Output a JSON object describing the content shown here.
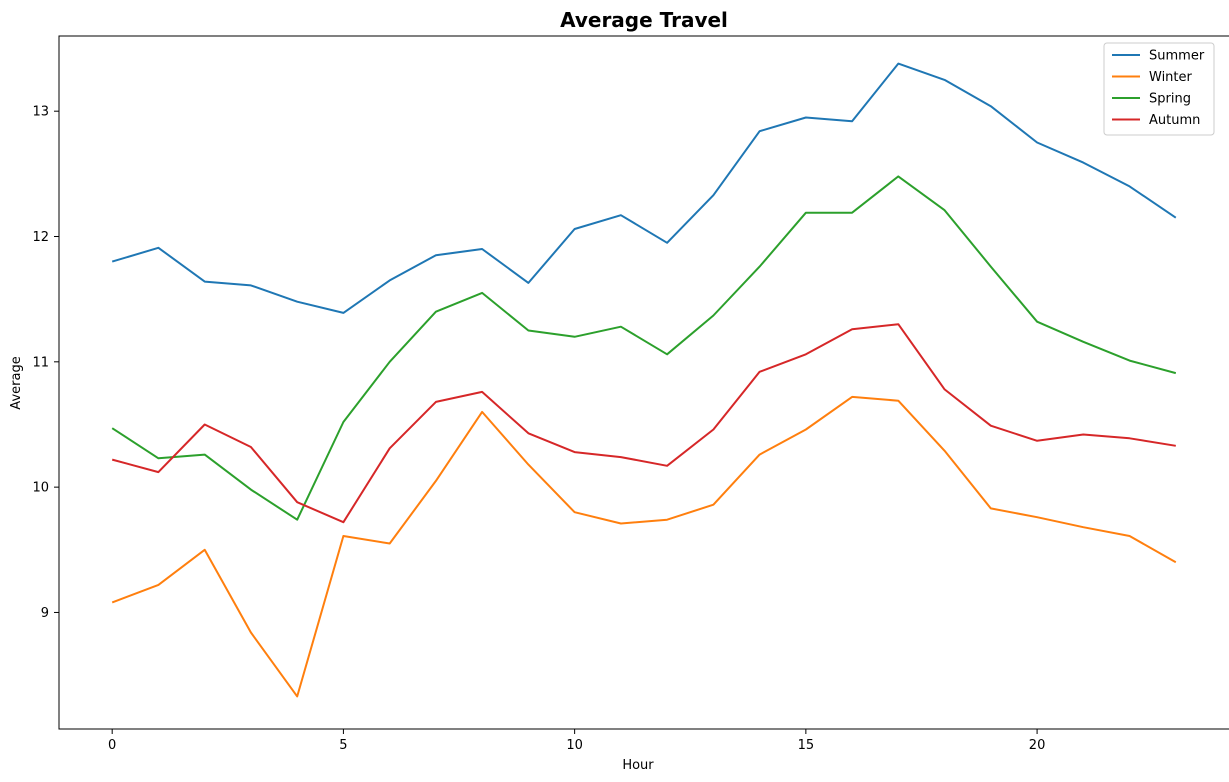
{
  "chart_data": {
    "type": "line",
    "title": "Average Travel",
    "xlabel": "Hour",
    "ylabel": "Average",
    "x": [
      0,
      1,
      2,
      3,
      4,
      5,
      6,
      7,
      8,
      9,
      10,
      11,
      12,
      13,
      14,
      15,
      16,
      17,
      18,
      19,
      20,
      21,
      22,
      23
    ],
    "xticks": [
      0,
      5,
      10,
      15,
      20
    ],
    "yticks": [
      9,
      10,
      11,
      12,
      13
    ],
    "xlim": [
      -1.15,
      24.15
    ],
    "ylim": [
      8.07,
      13.6
    ],
    "grid": false,
    "legend_position": "top-right",
    "series": [
      {
        "name": "Summer",
        "color": "#1f77b4",
        "values": [
          11.8,
          11.91,
          11.64,
          11.61,
          11.48,
          11.39,
          11.65,
          11.85,
          11.9,
          11.63,
          12.06,
          12.17,
          11.95,
          12.33,
          12.84,
          12.95,
          12.92,
          13.38,
          13.25,
          13.04,
          12.75,
          12.59,
          12.4,
          12.15
        ]
      },
      {
        "name": "Winter",
        "color": "#ff7f0e",
        "values": [
          9.08,
          9.22,
          9.5,
          8.84,
          8.33,
          9.61,
          9.55,
          10.05,
          10.6,
          10.18,
          9.8,
          9.71,
          9.74,
          9.86,
          10.26,
          10.46,
          10.72,
          10.69,
          10.29,
          9.83,
          9.76,
          9.68,
          9.61,
          9.4
        ]
      },
      {
        "name": "Spring",
        "color": "#2ca02c",
        "values": [
          10.47,
          10.23,
          10.26,
          9.98,
          9.74,
          10.52,
          11.0,
          11.4,
          11.55,
          11.25,
          11.2,
          11.28,
          11.06,
          11.37,
          11.76,
          12.19,
          12.19,
          12.48,
          12.21,
          11.76,
          11.32,
          11.16,
          11.01,
          10.91
        ]
      },
      {
        "name": "Autumn",
        "color": "#d62728",
        "values": [
          10.22,
          10.12,
          10.5,
          10.32,
          9.88,
          9.72,
          10.31,
          10.68,
          10.76,
          10.43,
          10.28,
          10.24,
          10.17,
          10.46,
          10.92,
          11.06,
          11.26,
          11.3,
          10.78,
          10.49,
          10.37,
          10.42,
          10.39,
          10.33
        ]
      }
    ]
  }
}
